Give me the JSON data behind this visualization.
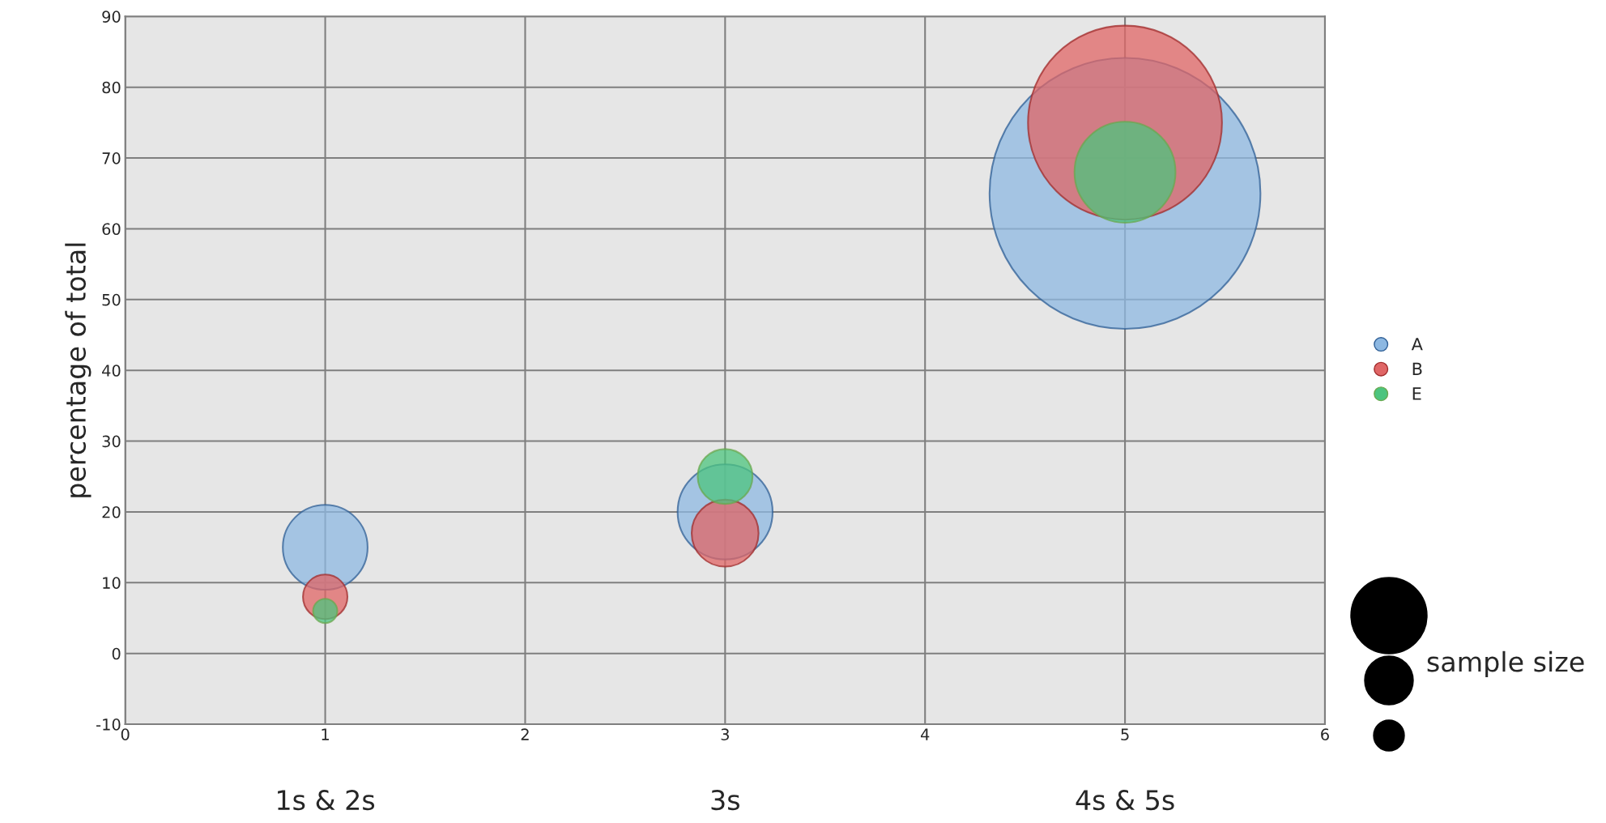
{
  "chart_data": {
    "type": "bubble",
    "ylabel": "percentage of total",
    "xlim": [
      0,
      6
    ],
    "xticks": [
      0,
      1,
      2,
      3,
      4,
      5,
      6
    ],
    "ylim": [
      -10,
      90
    ],
    "yticks": [
      -10,
      0,
      10,
      20,
      30,
      40,
      50,
      60,
      70,
      80,
      90
    ],
    "grid": true,
    "legend": "right",
    "series": [
      {
        "name": "A",
        "color": "#8db8e2",
        "x": [
          1,
          3,
          5
        ],
        "values": [
          15,
          20,
          65
        ],
        "sizes": [
          0.098,
          0.123,
          1
        ]
      },
      {
        "name": "B",
        "color": "#e06666",
        "x": [
          1,
          3,
          5
        ],
        "values": [
          8,
          17,
          75
        ],
        "sizes": [
          0.027,
          0.061,
          0.513
        ]
      },
      {
        "name": "E",
        "color": "#4cc47e",
        "x": [
          1,
          3,
          5
        ],
        "values": [
          6,
          25,
          68
        ],
        "sizes": [
          0.008,
          0.041,
          0.139
        ]
      }
    ],
    "annotations": [
      "1s & 2s",
      "3s",
      "4s & 5s",
      "sample size"
    ]
  }
}
